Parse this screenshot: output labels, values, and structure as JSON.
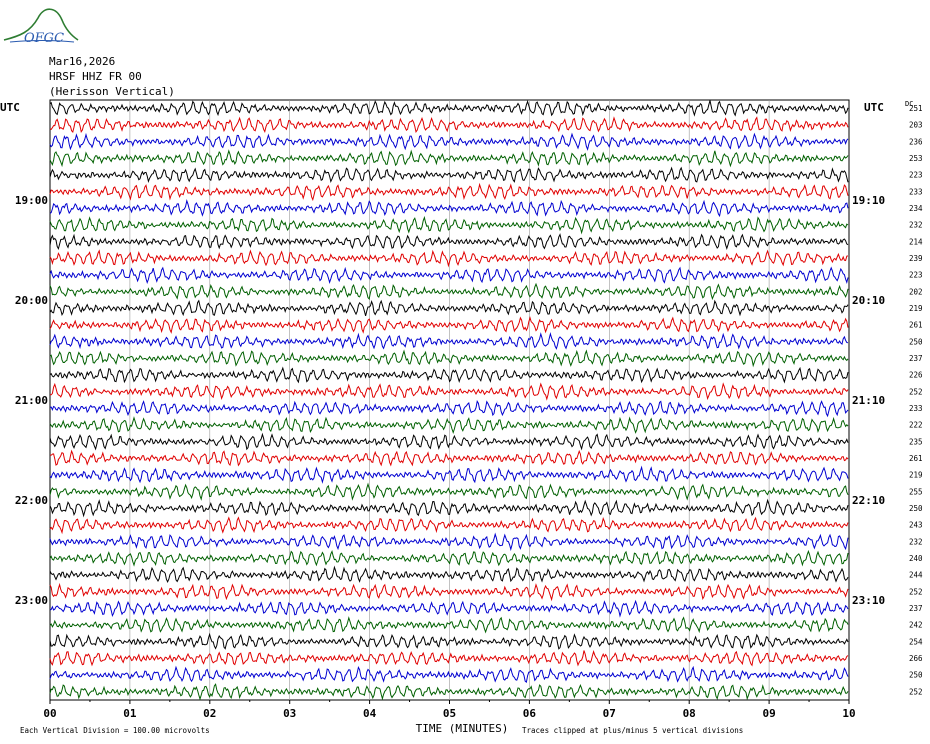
{
  "header": {
    "logo_text": "OFGC",
    "date": "Mar16,2026",
    "station": "HRSF HHZ FR 00",
    "location": "(Herisson Vertical)"
  },
  "colors": {
    "trace_cycle": [
      "#000000",
      "#e00000",
      "#0000d0",
      "#006000"
    ],
    "logo": "#2e7d32",
    "logo_text": "#2a5bb0"
  },
  "chart_data": {
    "type": "line",
    "xlabel": "TIME (MINUTES)",
    "x_ticks": [
      "00",
      "01",
      "02",
      "03",
      "04",
      "05",
      "06",
      "07",
      "08",
      "09",
      "10"
    ],
    "xlim": [
      0,
      10
    ],
    "left_axis_label": "UTC",
    "right_axis_label": "UTC",
    "dc_label": "DC",
    "left_time_labels": [
      {
        "row": 6,
        "label": "19:00"
      },
      {
        "row": 12,
        "label": "20:00"
      },
      {
        "row": 18,
        "label": "21:00"
      },
      {
        "row": 24,
        "label": "22:00"
      },
      {
        "row": 30,
        "label": "23:00"
      }
    ],
    "right_time_labels": [
      {
        "row": 6,
        "label": "19:10"
      },
      {
        "row": 12,
        "label": "20:10"
      },
      {
        "row": 18,
        "label": "21:10"
      },
      {
        "row": 24,
        "label": "22:10"
      },
      {
        "row": 30,
        "label": "23:10"
      }
    ],
    "dc_offsets": [
      251,
      203,
      236,
      253,
      223,
      233,
      234,
      232,
      214,
      239,
      223,
      202,
      219,
      261,
      250,
      237,
      226,
      252,
      233,
      222,
      235,
      261,
      219,
      255,
      250,
      243,
      232,
      240,
      244,
      252,
      237,
      242,
      254,
      266,
      250,
      252
    ],
    "footer_left": "Each Vertical Division =  100.00 microvolts",
    "footer_right": "Traces clipped at plus/minus 5 vertical divisions"
  }
}
